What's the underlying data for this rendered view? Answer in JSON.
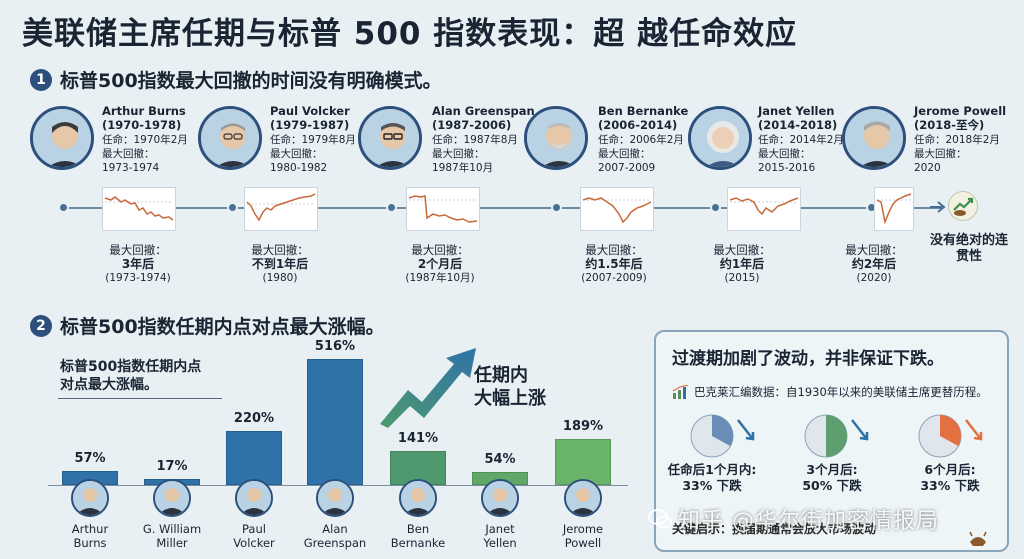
{
  "title": "美联储主席任期与标普 500 指数表现：超 越任命效应",
  "section1": {
    "number": "1",
    "heading": "标普500指数最大回撤的时间没有明确模式。"
  },
  "chairs": [
    {
      "name": "Arthur Burns",
      "years": "(1970-1978)",
      "appointed": "任命：1970年2月",
      "dd_label": "最大回撤：",
      "dd_period": "1973-1974",
      "after_label": "最大回撤：",
      "after_value": "3年后",
      "after_year": "(1973-1974)"
    },
    {
      "name": "Paul Volcker",
      "years": "(1979-1987)",
      "appointed": "任命：1979年8月",
      "dd_label": "最大回撤：",
      "dd_period": "1980-1982",
      "after_label": "最大回撤：",
      "after_value": "不到1年后",
      "after_year": "(1980)"
    },
    {
      "name": "Alan Greenspan",
      "years": "(1987-2006)",
      "appointed": "任命：1987年8月",
      "dd_label": "最大回撤：",
      "dd_period": "1987年10月",
      "after_label": "最大回撤：",
      "after_value": "2个月后",
      "after_year": "(1987年10月)"
    },
    {
      "name": "Ben Bernanke",
      "years": "(2006-2014)",
      "appointed": "任命：2006年2月",
      "dd_label": "最大回撤：",
      "dd_period": "2007-2009",
      "after_label": "最大回撤：",
      "after_value": "约1.5年后",
      "after_year": "(2007-2009)"
    },
    {
      "name": "Janet Yellen",
      "years": "(2014-2018)",
      "appointed": "任命：2014年2月",
      "dd_label": "最大回撤：",
      "dd_period": "2015-2016",
      "after_label": "最大回撤：",
      "after_value": "约1年后",
      "after_year": "(2015)"
    },
    {
      "name": "Jerome Powell",
      "years": "(2018-至今)",
      "appointed": "任命：2018年2月",
      "dd_label": "最大回撤：",
      "dd_period": "2020",
      "after_label": "最大回撤：",
      "after_value": "约2年后",
      "after_year": "(2020)"
    }
  ],
  "timeline_end": "没有绝对的连贯性",
  "section2": {
    "number": "2",
    "heading": "标普500指数任期内点对点最大涨幅。"
  },
  "bar_chart_label": "标普500指数任期内点对点最大涨幅。",
  "surge_text": {
    "line1": "任期内",
    "line2": "大幅上涨"
  },
  "chart_data": {
    "type": "bar",
    "categories": [
      "Arthur Burns",
      "G. William Miller",
      "Paul Volcker",
      "Alan Greenspan",
      "Ben Bernanke",
      "Janet Yellen",
      "Jerome Powell"
    ],
    "name_lines": [
      [
        "Arthur",
        "Burns"
      ],
      [
        "G. William",
        "Miller"
      ],
      [
        "Paul",
        "Volcker"
      ],
      [
        "Alan",
        "Greenspan"
      ],
      [
        "Ben",
        "Bernanke"
      ],
      [
        "Janet",
        "Yellen"
      ],
      [
        "Jerome",
        "Powell"
      ]
    ],
    "values": [
      57,
      17,
      220,
      516,
      141,
      54,
      189
    ],
    "value_labels": [
      "57%",
      "17%",
      "220%",
      "516%",
      "141%",
      "54%",
      "189%"
    ],
    "colors": [
      "#2f72a8",
      "#2f72a8",
      "#2f72a8",
      "#2f72a8",
      "#4e9a6e",
      "#5fa868",
      "#6ab46a"
    ],
    "ylim": [
      0,
      516
    ]
  },
  "panel": {
    "title": "过渡期加剧了波动，并非保证下跌。",
    "source": "巴克莱汇编数据：自1930年以来的美联储主席更替历程。",
    "pies": [
      {
        "label1": "任命后1个月内:",
        "label2": "33% 下跌",
        "fraction": 0.33,
        "color": "#6a8db8"
      },
      {
        "label1": "3个月后:",
        "label2": "50% 下跌",
        "fraction": 0.5,
        "color": "#5d9e6f"
      },
      {
        "label1": "6个月后:",
        "label2": "33% 下跌",
        "fraction": 0.33,
        "color": "#e27040"
      }
    ],
    "conclusion": "关键启示：换届期通常会放大市场波动"
  },
  "watermark": "知乎 @华尔街加密情报局",
  "colors": {
    "dark_blue": "#2d4f7c",
    "chart_line": "#c8693a",
    "background": "#e8f0f4"
  }
}
